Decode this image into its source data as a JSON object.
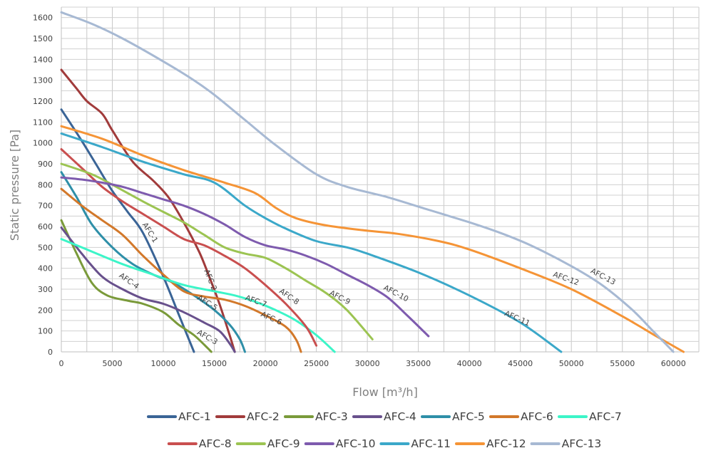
{
  "chart_data": {
    "type": "line",
    "xlabel": "Flow [m³/h]",
    "ylabel": "Static pressure [Pa]",
    "xlim": [
      0,
      62500
    ],
    "ylim": [
      0,
      1650
    ],
    "x_ticks": [
      0,
      5000,
      10000,
      15000,
      20000,
      25000,
      30000,
      35000,
      40000,
      45000,
      50000,
      55000,
      60000
    ],
    "y_ticks": [
      0,
      100,
      200,
      300,
      400,
      500,
      600,
      700,
      800,
      900,
      1000,
      1100,
      1200,
      1300,
      1400,
      1500,
      1600
    ],
    "grid": true,
    "legend_position": "bottom",
    "series": [
      {
        "name": "AFC-1",
        "color": "#3A6496",
        "curve_label": "AFC-1",
        "points": [
          [
            0,
            1160
          ],
          [
            2000,
            1010
          ],
          [
            3500,
            890
          ],
          [
            5000,
            770
          ],
          [
            6500,
            670
          ],
          [
            8000,
            570
          ],
          [
            10000,
            360
          ],
          [
            11500,
            180
          ],
          [
            13000,
            0
          ]
        ]
      },
      {
        "name": "AFC-2",
        "color": "#A13B3B",
        "curve_label": "AFC-2",
        "points": [
          [
            0,
            1350
          ],
          [
            1500,
            1260
          ],
          [
            2500,
            1200
          ],
          [
            4000,
            1140
          ],
          [
            5000,
            1060
          ],
          [
            7000,
            910
          ],
          [
            9000,
            820
          ],
          [
            10500,
            740
          ],
          [
            12000,
            620
          ],
          [
            13500,
            480
          ],
          [
            14500,
            360
          ],
          [
            15500,
            230
          ],
          [
            16500,
            80
          ],
          [
            17000,
            0
          ]
        ]
      },
      {
        "name": "AFC-3",
        "color": "#7A9A3A",
        "curve_label": "AFC-3",
        "points": [
          [
            0,
            630
          ],
          [
            1500,
            470
          ],
          [
            3000,
            330
          ],
          [
            4500,
            270
          ],
          [
            6500,
            245
          ],
          [
            8000,
            230
          ],
          [
            10000,
            190
          ],
          [
            11500,
            130
          ],
          [
            13000,
            80
          ],
          [
            14300,
            20
          ],
          [
            14700,
            0
          ]
        ]
      },
      {
        "name": "AFC-4",
        "color": "#68508C",
        "curve_label": "AFC-4",
        "points": [
          [
            0,
            595
          ],
          [
            2000,
            470
          ],
          [
            4000,
            360
          ],
          [
            6000,
            300
          ],
          [
            8000,
            255
          ],
          [
            10000,
            230
          ],
          [
            12000,
            190
          ],
          [
            14000,
            140
          ],
          [
            15500,
            100
          ],
          [
            16500,
            40
          ],
          [
            17000,
            0
          ]
        ]
      },
      {
        "name": "AFC-5",
        "color": "#2E8FA8",
        "curve_label": "AFC-5",
        "points": [
          [
            0,
            860
          ],
          [
            1500,
            740
          ],
          [
            3000,
            610
          ],
          [
            5000,
            500
          ],
          [
            7000,
            420
          ],
          [
            9000,
            370
          ],
          [
            11000,
            330
          ],
          [
            13000,
            270
          ],
          [
            15000,
            200
          ],
          [
            16500,
            130
          ],
          [
            17500,
            60
          ],
          [
            18000,
            0
          ]
        ]
      },
      {
        "name": "AFC-6",
        "color": "#D2782A",
        "curve_label": "AFC-6",
        "points": [
          [
            0,
            780
          ],
          [
            2000,
            700
          ],
          [
            4000,
            630
          ],
          [
            6000,
            560
          ],
          [
            8000,
            460
          ],
          [
            10000,
            370
          ],
          [
            12000,
            290
          ],
          [
            14000,
            265
          ],
          [
            16000,
            250
          ],
          [
            18000,
            220
          ],
          [
            20000,
            175
          ],
          [
            22000,
            120
          ],
          [
            23000,
            60
          ],
          [
            23500,
            0
          ]
        ]
      },
      {
        "name": "AFC-7",
        "color": "#3CF5C8",
        "curve_label": "AFC-7",
        "points": [
          [
            0,
            540
          ],
          [
            3000,
            480
          ],
          [
            6000,
            420
          ],
          [
            9000,
            370
          ],
          [
            12000,
            320
          ],
          [
            15000,
            290
          ],
          [
            17000,
            270
          ],
          [
            19000,
            240
          ],
          [
            21000,
            200
          ],
          [
            23000,
            150
          ],
          [
            25000,
            80
          ],
          [
            26800,
            0
          ]
        ]
      },
      {
        "name": "AFC-8",
        "color": "#C94F4F",
        "curve_label": "AFC-8",
        "points": [
          [
            0,
            970
          ],
          [
            2000,
            880
          ],
          [
            4000,
            790
          ],
          [
            6000,
            720
          ],
          [
            8000,
            660
          ],
          [
            10000,
            600
          ],
          [
            12000,
            540
          ],
          [
            14000,
            510
          ],
          [
            16000,
            460
          ],
          [
            18000,
            400
          ],
          [
            20000,
            320
          ],
          [
            22000,
            230
          ],
          [
            24000,
            120
          ],
          [
            25000,
            30
          ]
        ]
      },
      {
        "name": "AFC-9",
        "color": "#9CC452",
        "curve_label": "AFC-9",
        "points": [
          [
            0,
            900
          ],
          [
            3000,
            850
          ],
          [
            5000,
            800
          ],
          [
            8000,
            720
          ],
          [
            10000,
            670
          ],
          [
            12000,
            620
          ],
          [
            14000,
            560
          ],
          [
            16000,
            500
          ],
          [
            18000,
            470
          ],
          [
            20000,
            450
          ],
          [
            22000,
            400
          ],
          [
            24000,
            340
          ],
          [
            26000,
            280
          ],
          [
            28000,
            200
          ],
          [
            30500,
            60
          ]
        ]
      },
      {
        "name": "AFC-10",
        "color": "#7E5BAE",
        "curve_label": "AFC-10",
        "points": [
          [
            0,
            835
          ],
          [
            2000,
            825
          ],
          [
            4000,
            810
          ],
          [
            6000,
            790
          ],
          [
            8000,
            760
          ],
          [
            10000,
            730
          ],
          [
            12000,
            700
          ],
          [
            14000,
            660
          ],
          [
            16000,
            610
          ],
          [
            18000,
            550
          ],
          [
            20000,
            510
          ],
          [
            22000,
            490
          ],
          [
            24000,
            460
          ],
          [
            26000,
            420
          ],
          [
            28000,
            370
          ],
          [
            30000,
            320
          ],
          [
            32000,
            260
          ],
          [
            34000,
            170
          ],
          [
            36000,
            75
          ]
        ]
      },
      {
        "name": "AFC-11",
        "color": "#3BA8C9",
        "curve_label": "AFC-11",
        "points": [
          [
            0,
            1045
          ],
          [
            4000,
            980
          ],
          [
            8000,
            910
          ],
          [
            12000,
            850
          ],
          [
            15000,
            810
          ],
          [
            18000,
            700
          ],
          [
            20000,
            640
          ],
          [
            22000,
            590
          ],
          [
            25000,
            530
          ],
          [
            28000,
            500
          ],
          [
            30000,
            470
          ],
          [
            35000,
            380
          ],
          [
            40000,
            270
          ],
          [
            45000,
            140
          ],
          [
            49000,
            0
          ]
        ]
      },
      {
        "name": "AFC-12",
        "color": "#F59436",
        "curve_label": "AFC-12",
        "points": [
          [
            0,
            1080
          ],
          [
            4000,
            1020
          ],
          [
            8000,
            940
          ],
          [
            12000,
            870
          ],
          [
            16000,
            810
          ],
          [
            19000,
            760
          ],
          [
            21000,
            690
          ],
          [
            23000,
            640
          ],
          [
            26000,
            605
          ],
          [
            30000,
            580
          ],
          [
            33000,
            565
          ],
          [
            37000,
            530
          ],
          [
            40000,
            490
          ],
          [
            45000,
            400
          ],
          [
            50000,
            300
          ],
          [
            55000,
            170
          ],
          [
            58500,
            70
          ],
          [
            61000,
            0
          ]
        ]
      },
      {
        "name": "AFC-13",
        "color": "#A7B9D3",
        "curve_label": "AFC-13",
        "points": [
          [
            0,
            1625
          ],
          [
            3000,
            1570
          ],
          [
            6000,
            1500
          ],
          [
            10000,
            1390
          ],
          [
            13000,
            1300
          ],
          [
            15000,
            1230
          ],
          [
            18000,
            1110
          ],
          [
            21000,
            990
          ],
          [
            25000,
            850
          ],
          [
            28000,
            790
          ],
          [
            32000,
            740
          ],
          [
            36000,
            680
          ],
          [
            40000,
            620
          ],
          [
            43000,
            570
          ],
          [
            46000,
            510
          ],
          [
            50000,
            410
          ],
          [
            53000,
            320
          ],
          [
            56000,
            200
          ],
          [
            58000,
            100
          ],
          [
            60000,
            0
          ]
        ]
      }
    ]
  }
}
